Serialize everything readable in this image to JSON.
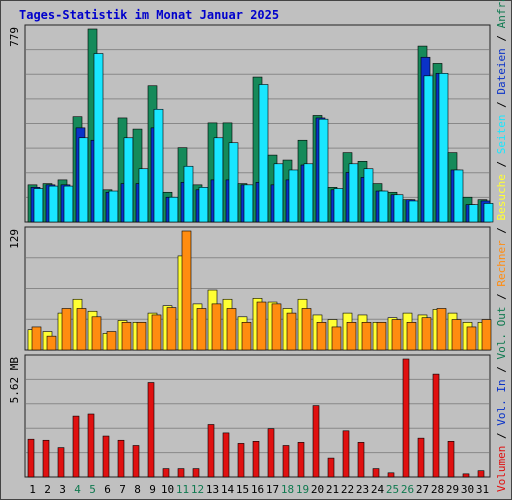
{
  "title": "Tages-Statistik im Monat Januar 2025",
  "colors": {
    "background": "#c0c0c0",
    "title": "#0000cc",
    "hits": "#158a5a",
    "files": "#0a32c8",
    "pages": "#19e6ff",
    "visits": "#ffff33",
    "sites": "#ff8c10",
    "kbytes": "#e01010",
    "weekend_label": "#107a50",
    "weekday_label": "#000000",
    "grid": "#888888"
  },
  "chart_data": [
    {
      "type": "bar",
      "name": "top-panel",
      "ymax_label": "779",
      "ylim": [
        0,
        779
      ],
      "series": [
        {
          "name": "Anfragen",
          "key": "hits",
          "values": [
            150,
            155,
            170,
            425,
            779,
            130,
            420,
            375,
            550,
            120,
            300,
            150,
            400,
            400,
            155,
            585,
            270,
            250,
            330,
            430,
            140,
            280,
            245,
            155,
            120,
            90,
            710,
            640,
            280,
            100,
            90
          ]
        },
        {
          "name": "Dateien",
          "key": "files",
          "values": [
            140,
            150,
            150,
            380,
            330,
            120,
            155,
            155,
            380,
            100,
            160,
            130,
            170,
            170,
            150,
            160,
            150,
            170,
            230,
            420,
            130,
            200,
            180,
            125,
            110,
            90,
            665,
            600,
            210,
            70,
            85
          ]
        },
        {
          "name": "Seiten",
          "key": "pages",
          "values": [
            135,
            145,
            145,
            340,
            680,
            125,
            340,
            215,
            455,
            100,
            225,
            140,
            340,
            320,
            150,
            555,
            235,
            210,
            235,
            415,
            135,
            235,
            215,
            125,
            110,
            85,
            590,
            600,
            210,
            70,
            75
          ]
        }
      ]
    },
    {
      "type": "bar",
      "name": "middle-panel",
      "ymax_label": "129",
      "ylim": [
        0,
        129
      ],
      "series": [
        {
          "name": "Besuche",
          "key": "visits",
          "values": [
            22,
            20,
            40,
            55,
            42,
            18,
            32,
            30,
            40,
            48,
            102,
            50,
            65,
            55,
            36,
            56,
            52,
            45,
            55,
            38,
            33,
            40,
            38,
            30,
            35,
            40,
            38,
            44,
            40,
            30,
            30
          ]
        },
        {
          "name": "Rechner",
          "key": "sites",
          "values": [
            25,
            15,
            45,
            45,
            36,
            20,
            30,
            30,
            38,
            46,
            129,
            45,
            50,
            45,
            30,
            52,
            50,
            40,
            45,
            30,
            25,
            30,
            30,
            30,
            33,
            30,
            35,
            45,
            33,
            25,
            33
          ]
        }
      ]
    },
    {
      "type": "bar",
      "name": "bottom-panel",
      "ymax_label": "5.62 MB",
      "ylim": [
        0,
        5.62
      ],
      "series": [
        {
          "name": "Vol. Out",
          "key": "vol_out",
          "values": [
            0,
            0,
            0,
            0,
            0,
            0,
            0,
            0,
            0,
            0,
            0,
            0,
            0,
            0,
            0,
            0,
            0,
            0,
            0,
            0,
            0,
            0,
            0,
            0,
            0,
            0,
            0,
            0,
            0,
            0,
            0
          ]
        },
        {
          "name": "Vol. In",
          "key": "vol_in",
          "values": [
            0,
            0,
            0,
            0,
            0,
            0,
            0,
            0,
            0,
            0,
            0,
            0,
            0,
            0,
            0,
            0,
            0,
            0,
            0,
            0,
            0,
            0,
            0,
            0,
            0,
            0,
            0,
            0,
            0,
            0,
            0
          ]
        },
        {
          "name": "Volumen",
          "key": "kbytes",
          "values": [
            1.8,
            1.75,
            1.4,
            2.9,
            3.0,
            1.95,
            1.75,
            1.5,
            4.5,
            0.4,
            0.4,
            0.4,
            2.5,
            2.1,
            1.6,
            1.7,
            2.3,
            1.5,
            1.65,
            3.4,
            0.9,
            2.2,
            1.65,
            0.4,
            0.2,
            5.62,
            1.85,
            4.9,
            1.7,
            0.15,
            0.3
          ]
        }
      ]
    }
  ],
  "x_labels": [
    "1",
    "2",
    "3",
    "4",
    "5",
    "6",
    "7",
    "8",
    "9",
    "10",
    "11",
    "12",
    "13",
    "14",
    "15",
    "16",
    "17",
    "18",
    "19",
    "20",
    "21",
    "22",
    "23",
    "24",
    "25",
    "26",
    "27",
    "28",
    "29",
    "30",
    "31"
  ],
  "weekend_days": [
    4,
    5,
    11,
    12,
    18,
    19,
    25,
    26
  ],
  "right_legend": [
    {
      "text": "Volumen",
      "key": "kbytes"
    },
    {
      "text": " / ",
      "key": "sep"
    },
    {
      "text": "Vol. In",
      "key": "files"
    },
    {
      "text": " / ",
      "key": "sep"
    },
    {
      "text": "Vol. Out",
      "key": "weekend_label"
    },
    {
      "text": " / ",
      "key": "sep"
    },
    {
      "text": "Rechner",
      "key": "sites"
    },
    {
      "text": " / ",
      "key": "sep"
    },
    {
      "text": "Besuche",
      "key": "visits"
    },
    {
      "text": " / ",
      "key": "sep"
    },
    {
      "text": "Seiten",
      "key": "pages"
    },
    {
      "text": " / ",
      "key": "sep"
    },
    {
      "text": "Dateien",
      "key": "files"
    },
    {
      "text": " / ",
      "key": "sep"
    },
    {
      "text": "Anfragen",
      "key": "weekend_label"
    }
  ]
}
